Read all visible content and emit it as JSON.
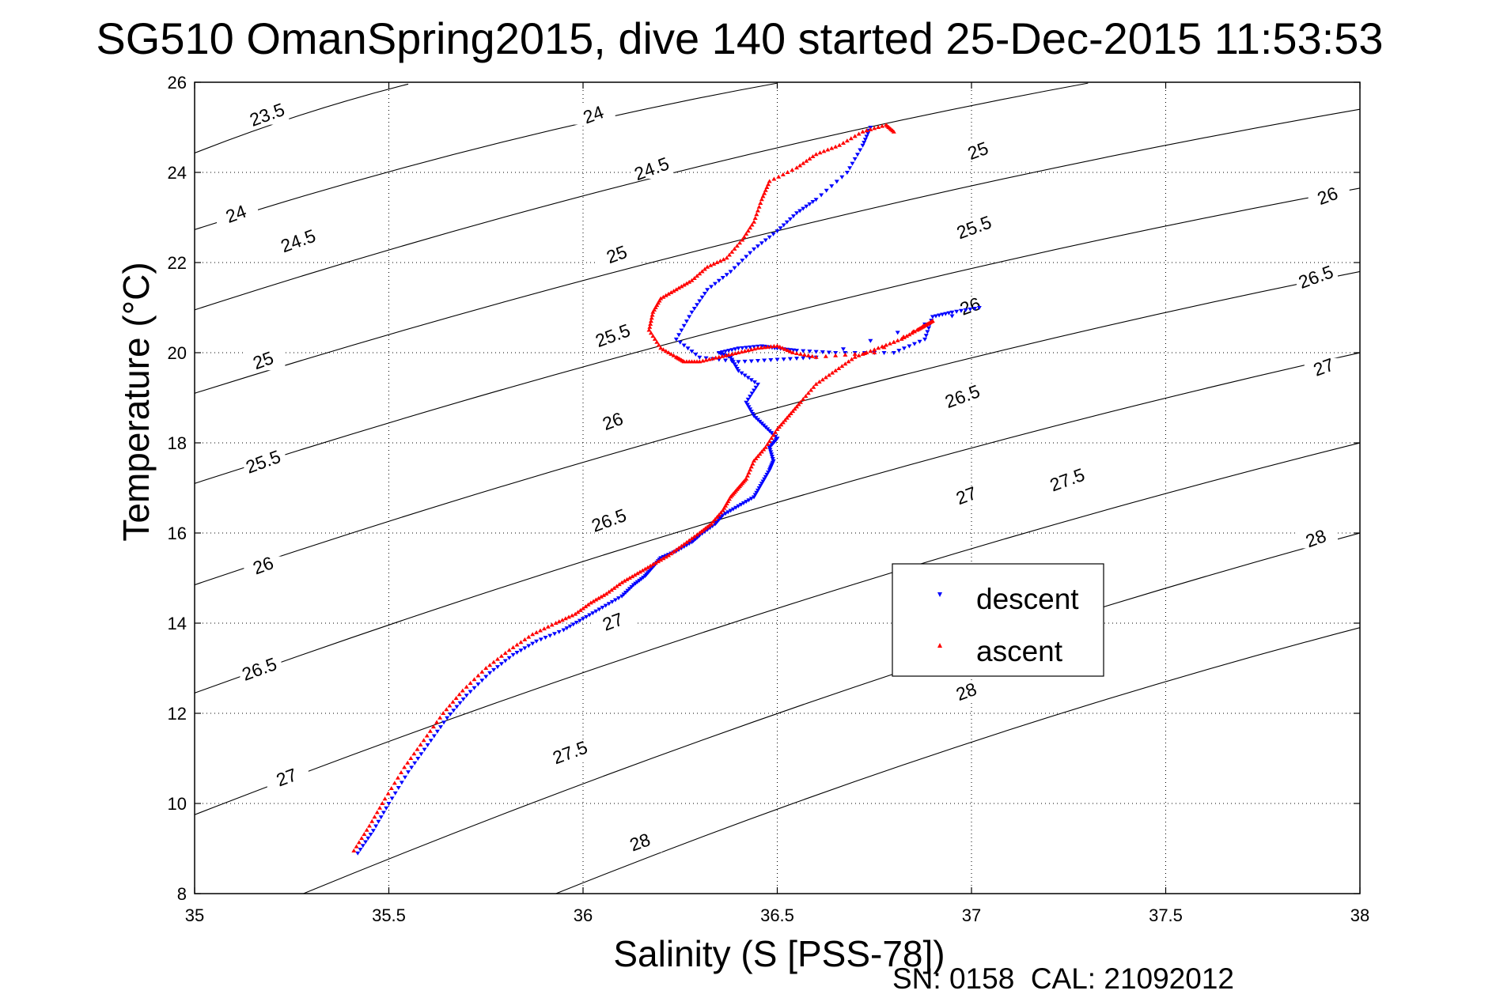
{
  "chart_data": {
    "type": "scatter",
    "title": "SG510 OmanSpring2015, dive 140 started 25-Dec-2015 11:53:53",
    "xlabel": "Salinity (S [PSS-78])",
    "ylabel": "Temperature (°C)",
    "xlim": [
      35,
      38
    ],
    "ylim": [
      8,
      26
    ],
    "x_ticks": [
      "35",
      "35.5",
      "36",
      "36.5",
      "37",
      "37.5",
      "38"
    ],
    "y_ticks": [
      "8",
      "10",
      "12",
      "14",
      "16",
      "18",
      "20",
      "22",
      "24",
      "26"
    ],
    "grid": true,
    "legend_position": "right-middle",
    "footer": "SN: 0158  CAL: 21092012",
    "series": [
      {
        "name": "descent",
        "color": "#0000ff",
        "marker": "triangle-down",
        "x": [
          35.42,
          35.46,
          35.5,
          35.55,
          35.6,
          35.65,
          35.7,
          35.76,
          35.82,
          35.88,
          35.95,
          36.0,
          36.05,
          36.1,
          36.13,
          36.16,
          36.18,
          36.2,
          36.24,
          36.28,
          36.3,
          36.34,
          36.36,
          36.4,
          36.44,
          36.46,
          36.48,
          36.49,
          36.48,
          36.5,
          36.47,
          36.44,
          36.42,
          36.45,
          36.4,
          36.38,
          36.35,
          36.4,
          36.46,
          36.5,
          36.55,
          36.65,
          36.8,
          36.88,
          36.9,
          36.95,
          37.02,
          36.6,
          36.5,
          36.4,
          36.3,
          36.24,
          36.28,
          36.32,
          36.38,
          36.44,
          36.5,
          36.55,
          36.6,
          36.68,
          36.72,
          36.74
        ],
        "y": [
          8.9,
          9.4,
          10.0,
          10.7,
          11.3,
          11.9,
          12.4,
          12.9,
          13.3,
          13.6,
          13.85,
          14.1,
          14.35,
          14.6,
          14.85,
          15.05,
          15.25,
          15.45,
          15.6,
          15.8,
          15.95,
          16.2,
          16.4,
          16.6,
          16.8,
          17.1,
          17.4,
          17.6,
          17.9,
          18.1,
          18.35,
          18.6,
          18.9,
          19.3,
          19.6,
          19.9,
          20.0,
          20.1,
          20.15,
          20.1,
          20.05,
          20.0,
          20.0,
          20.3,
          20.8,
          20.9,
          21.0,
          19.9,
          19.85,
          19.8,
          19.9,
          20.3,
          20.9,
          21.4,
          21.8,
          22.3,
          22.7,
          23.1,
          23.4,
          24.0,
          24.6,
          25.0
        ]
      },
      {
        "name": "ascent",
        "color": "#ff0000",
        "marker": "triangle-up",
        "x": [
          35.41,
          35.45,
          35.49,
          35.54,
          35.59,
          35.64,
          35.69,
          35.75,
          35.81,
          35.87,
          35.93,
          35.98,
          36.02,
          36.06,
          36.1,
          36.14,
          36.18,
          36.22,
          36.26,
          36.3,
          36.33,
          36.36,
          36.38,
          36.4,
          36.42,
          36.44,
          36.47,
          36.5,
          36.53,
          36.56,
          36.6,
          36.65,
          36.7,
          36.76,
          36.82,
          36.86,
          36.88,
          36.9,
          36.75,
          36.6,
          36.54,
          36.5,
          36.45,
          36.4,
          36.35,
          36.3,
          36.26,
          36.24,
          36.2,
          36.17,
          36.18,
          36.2,
          36.24,
          36.28,
          36.32,
          36.37,
          36.41,
          36.44,
          36.46,
          36.48,
          36.55,
          36.6,
          36.66,
          36.72,
          36.78,
          36.8
        ],
        "y": [
          8.95,
          9.5,
          10.1,
          10.8,
          11.4,
          12.0,
          12.5,
          13.0,
          13.4,
          13.75,
          14.0,
          14.2,
          14.45,
          14.65,
          14.9,
          15.1,
          15.3,
          15.5,
          15.75,
          16.0,
          16.2,
          16.5,
          16.8,
          17.0,
          17.2,
          17.6,
          17.9,
          18.3,
          18.6,
          18.9,
          19.3,
          19.6,
          19.9,
          20.1,
          20.3,
          20.5,
          20.6,
          20.7,
          20.0,
          19.9,
          20.0,
          20.15,
          20.1,
          20.0,
          19.9,
          19.8,
          19.8,
          19.9,
          20.1,
          20.5,
          20.9,
          21.2,
          21.4,
          21.6,
          21.9,
          22.1,
          22.5,
          22.9,
          23.4,
          23.8,
          24.1,
          24.4,
          24.6,
          24.9,
          25.05,
          24.9
        ]
      }
    ],
    "density_contours": [
      {
        "label": "23.5",
        "x": [
          35.0,
          35.55
        ],
        "y": [
          24.43,
          25.96
        ]
      },
      {
        "label": "24",
        "x": [
          35.0,
          36.5
        ],
        "y": [
          22.73,
          25.98
        ]
      },
      {
        "label": "24.5",
        "x": [
          35.0,
          37.3
        ],
        "y": [
          20.95,
          25.98
        ]
      },
      {
        "label": "25",
        "x": [
          35.0,
          38.0
        ],
        "y": [
          19.1,
          25.4
        ]
      },
      {
        "label": "25.5",
        "x": [
          35.0,
          38.0
        ],
        "y": [
          17.1,
          23.65
        ]
      },
      {
        "label": "26",
        "x": [
          35.0,
          38.0
        ],
        "y": [
          14.85,
          21.8
        ]
      },
      {
        "label": "26.5",
        "x": [
          35.0,
          38.0
        ],
        "y": [
          12.45,
          20.0
        ]
      },
      {
        "label": "27",
        "x": [
          35.0,
          38.0
        ],
        "y": [
          9.75,
          18.0
        ]
      },
      {
        "label": "27.5",
        "x": [
          35.28,
          38.0
        ],
        "y": [
          8.0,
          16.0
        ]
      },
      {
        "label": "28",
        "x": [
          35.93,
          38.0
        ],
        "y": [
          8.0,
          13.9
        ]
      }
    ],
    "contour_labels": [
      {
        "text": "23.5",
        "x": 35.19,
        "y": 25.2
      },
      {
        "text": "24",
        "x": 36.03,
        "y": 25.2
      },
      {
        "text": "24",
        "x": 35.11,
        "y": 23.0
      },
      {
        "text": "24.5",
        "x": 36.18,
        "y": 24.0
      },
      {
        "text": "24.5",
        "x": 35.27,
        "y": 22.4
      },
      {
        "text": "25",
        "x": 36.09,
        "y": 22.1
      },
      {
        "text": "25",
        "x": 37.02,
        "y": 24.4
      },
      {
        "text": "25",
        "x": 35.18,
        "y": 19.75
      },
      {
        "text": "25.5",
        "x": 36.08,
        "y": 20.3
      },
      {
        "text": "25.5",
        "x": 37.01,
        "y": 22.7
      },
      {
        "text": "25.5",
        "x": 35.18,
        "y": 17.5
      },
      {
        "text": "26",
        "x": 36.08,
        "y": 18.4
      },
      {
        "text": "26",
        "x": 37.0,
        "y": 20.95
      },
      {
        "text": "26",
        "x": 37.92,
        "y": 23.4
      },
      {
        "text": "26",
        "x": 35.18,
        "y": 15.2
      },
      {
        "text": "26.5",
        "x": 36.07,
        "y": 16.2
      },
      {
        "text": "26.5",
        "x": 36.98,
        "y": 18.95
      },
      {
        "text": "26.5",
        "x": 37.89,
        "y": 21.6
      },
      {
        "text": "26.5",
        "x": 35.17,
        "y": 12.9
      },
      {
        "text": "27",
        "x": 36.08,
        "y": 13.95
      },
      {
        "text": "27",
        "x": 36.99,
        "y": 16.75
      },
      {
        "text": "27",
        "x": 37.91,
        "y": 19.6
      },
      {
        "text": "27",
        "x": 35.24,
        "y": 10.5
      },
      {
        "text": "27.5",
        "x": 35.97,
        "y": 11.05
      },
      {
        "text": "27.5",
        "x": 37.25,
        "y": 17.1
      },
      {
        "text": "28",
        "x": 36.15,
        "y": 9.06
      },
      {
        "text": "28",
        "x": 36.99,
        "y": 12.4
      },
      {
        "text": "28",
        "x": 37.89,
        "y": 15.8
      }
    ]
  }
}
